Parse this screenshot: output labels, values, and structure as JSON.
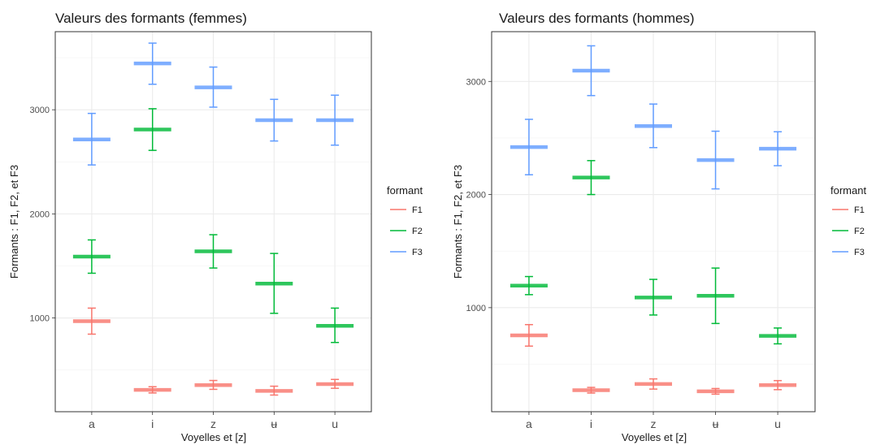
{
  "colors": {
    "F1": "#F8766D",
    "F2": "#00BA38",
    "F3": "#619CFF"
  },
  "chart_data": [
    {
      "type": "errorbar",
      "title": "Valeurs des formants (femmes)",
      "xlabel": "Voyelles et [z]",
      "ylabel": "Formants : F1, F2, et F3",
      "categories": [
        "a",
        "i",
        "z",
        "ʉ",
        "u"
      ],
      "ylim": [
        100,
        3750
      ],
      "yticks": [
        1000,
        2000,
        3000
      ],
      "grid": true,
      "legend": {
        "title": "formant",
        "position": "right"
      },
      "series": [
        {
          "name": "F1",
          "mean": [
            970,
            310,
            355,
            300,
            365
          ],
          "low": [
            845,
            280,
            315,
            260,
            325
          ],
          "high": [
            1095,
            340,
            400,
            345,
            410
          ]
        },
        {
          "name": "F2",
          "mean": [
            1590,
            2810,
            1640,
            1330,
            925
          ],
          "low": [
            1430,
            2610,
            1480,
            1045,
            765
          ],
          "high": [
            1750,
            3010,
            1800,
            1620,
            1095
          ]
        },
        {
          "name": "F3",
          "mean": [
            2715,
            3445,
            3215,
            2900,
            2900
          ],
          "low": [
            2470,
            3245,
            3025,
            2700,
            2660
          ],
          "high": [
            2965,
            3640,
            3410,
            3100,
            3140
          ]
        }
      ]
    },
    {
      "type": "errorbar",
      "title": "Valeurs des formants (hommes)",
      "xlabel": "Voyelles et [z]",
      "ylabel": "Formants : F1, F2, et F3",
      "categories": [
        "a",
        "i",
        "z",
        "ʉ",
        "u"
      ],
      "ylim": [
        80,
        3440
      ],
      "yticks": [
        1000,
        2000,
        3000
      ],
      "grid": true,
      "legend": {
        "title": "formant",
        "position": "right"
      },
      "series": [
        {
          "name": "F1",
          "mean": [
            755,
            270,
            325,
            260,
            315
          ],
          "low": [
            660,
            245,
            280,
            235,
            275
          ],
          "high": [
            850,
            295,
            370,
            285,
            355
          ]
        },
        {
          "name": "F2",
          "mean": [
            1195,
            2150,
            1090,
            1105,
            750
          ],
          "low": [
            1115,
            2000,
            935,
            860,
            680
          ],
          "high": [
            1275,
            2300,
            1250,
            1350,
            820
          ]
        },
        {
          "name": "F3",
          "mean": [
            2420,
            3095,
            2605,
            2305,
            2405
          ],
          "low": [
            2175,
            2875,
            2415,
            2050,
            2255
          ],
          "high": [
            2665,
            3315,
            2800,
            2560,
            2555
          ]
        }
      ]
    }
  ]
}
